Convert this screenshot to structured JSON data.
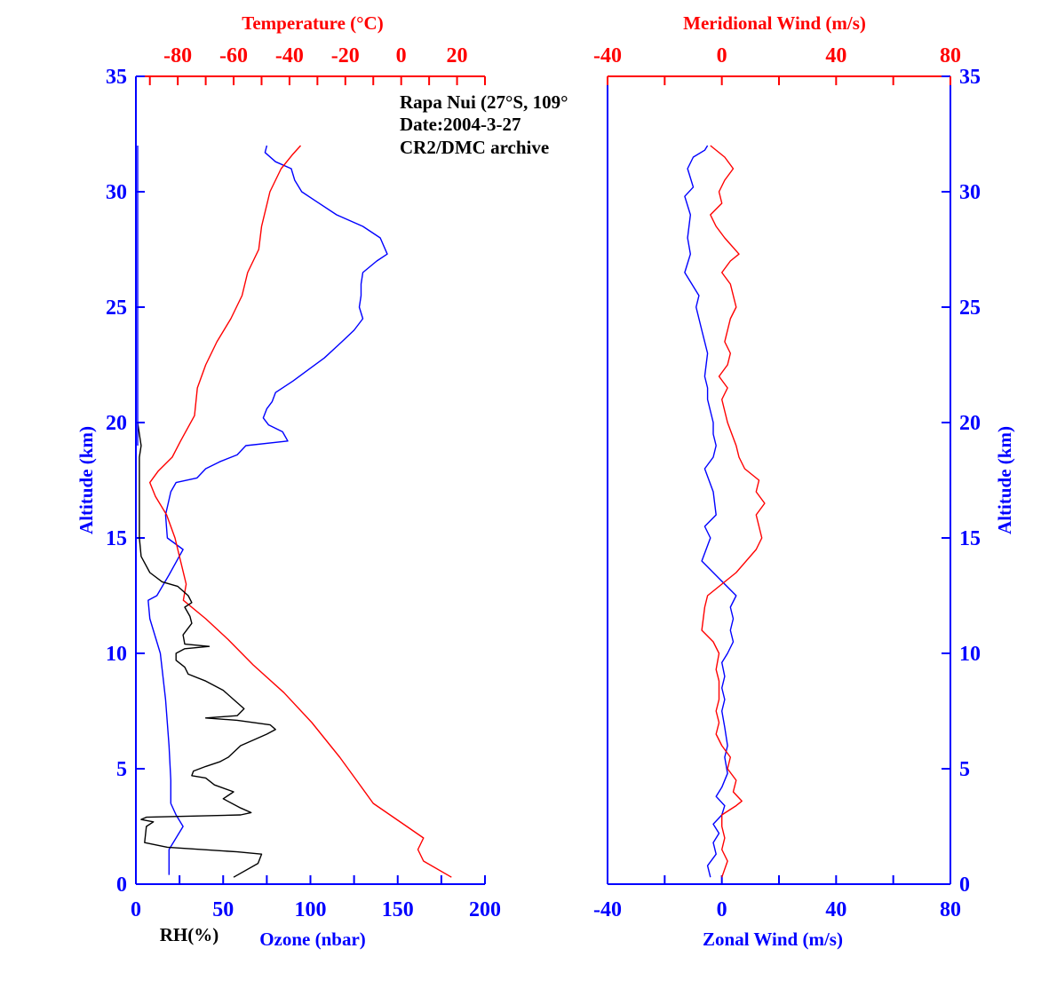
{
  "annotation": {
    "station": "Rapa Nui (27°S, 109°",
    "date": "Date:2004-3-27",
    "archive": "CR2/DMC archive"
  },
  "colors": {
    "blue": "#0000ff",
    "red": "#ff0000",
    "black": "#000000"
  },
  "chart_data": [
    {
      "type": "line",
      "panel": "left",
      "y_axis": {
        "label": "Altitude (km)",
        "range": [
          0,
          35
        ],
        "ticks": [
          0,
          5,
          10,
          15,
          20,
          25,
          30,
          35
        ]
      },
      "x_bottom": {
        "label": "Ozone (nbar)",
        "label2": "RH(%)",
        "range": [
          0,
          200
        ],
        "ticks": [
          0,
          50,
          100,
          150,
          200
        ]
      },
      "x_top": {
        "label": "Temperature (°C)",
        "range": [
          -95,
          30
        ],
        "ticks": [
          -80,
          -60,
          -40,
          -20,
          0,
          20
        ]
      },
      "series": [
        {
          "key": "ozone",
          "axis": "bottom",
          "color": "#0000ff",
          "points": [
            [
              19,
              0.4
            ],
            [
              19,
              1.5
            ],
            [
              27,
              2.5
            ],
            [
              23,
              3
            ],
            [
              20,
              3.5
            ],
            [
              20,
              4.5
            ],
            [
              19,
              6
            ],
            [
              17,
              8
            ],
            [
              14,
              10
            ],
            [
              8,
              11.5
            ],
            [
              7,
              12.3
            ],
            [
              12,
              12.5
            ],
            [
              19,
              13.4
            ],
            [
              27,
              14.5
            ],
            [
              18,
              15
            ],
            [
              17,
              16
            ],
            [
              20,
              17
            ],
            [
              23,
              17.4
            ],
            [
              35,
              17.6
            ],
            [
              40,
              18
            ],
            [
              48,
              18.3
            ],
            [
              58,
              18.6
            ],
            [
              63,
              19
            ],
            [
              87,
              19.2
            ],
            [
              84,
              19.6
            ],
            [
              76,
              19.9
            ],
            [
              73,
              20.2
            ],
            [
              75,
              20.6
            ],
            [
              78,
              20.9
            ],
            [
              80,
              21.3
            ],
            [
              90,
              21.8
            ],
            [
              99,
              22.3
            ],
            [
              108,
              22.8
            ],
            [
              118,
              23.5
            ],
            [
              125,
              24
            ],
            [
              130,
              24.5
            ],
            [
              128,
              25
            ],
            [
              129,
              25.5
            ],
            [
              129,
              26
            ],
            [
              130,
              26.5
            ],
            [
              138,
              27
            ],
            [
              144,
              27.3
            ],
            [
              140,
              28
            ],
            [
              130,
              28.5
            ],
            [
              115,
              29
            ],
            [
              103,
              29.6
            ],
            [
              95,
              30
            ],
            [
              91,
              30.5
            ],
            [
              89,
              31
            ],
            [
              80,
              31.3
            ],
            [
              74,
              31.7
            ],
            [
              75,
              32
            ]
          ]
        },
        {
          "key": "temperature",
          "axis": "top",
          "color": "#ff0000",
          "points": [
            [
              18,
              0.3
            ],
            [
              8,
              1
            ],
            [
              6,
              1.5
            ],
            [
              8,
              2
            ],
            [
              2,
              2.5
            ],
            [
              -10,
              3.5
            ],
            [
              -16,
              4.5
            ],
            [
              -22,
              5.5
            ],
            [
              -32,
              7
            ],
            [
              -42,
              8.3
            ],
            [
              -53,
              9.5
            ],
            [
              -62,
              10.6
            ],
            [
              -70,
              11.5
            ],
            [
              -78,
              12.3
            ],
            [
              -77,
              13
            ],
            [
              -79,
              14
            ],
            [
              -81,
              15
            ],
            [
              -84,
              16
            ],
            [
              -88,
              16.8
            ],
            [
              -90,
              17.4
            ],
            [
              -87,
              17.9
            ],
            [
              -82,
              18.5
            ],
            [
              -79,
              19.2
            ],
            [
              -74,
              20.3
            ],
            [
              -73,
              21.5
            ],
            [
              -70,
              22.5
            ],
            [
              -66,
              23.5
            ],
            [
              -61,
              24.5
            ],
            [
              -57,
              25.5
            ],
            [
              -55,
              26.5
            ],
            [
              -51,
              27.5
            ],
            [
              -50,
              28.5
            ],
            [
              -48,
              29.5
            ],
            [
              -47,
              30
            ],
            [
              -43,
              31
            ],
            [
              -39,
              31.6
            ],
            [
              -36,
              32
            ]
          ]
        },
        {
          "key": "rh",
          "axis": "bottom",
          "color": "#000000",
          "points": [
            [
              56,
              0.3
            ],
            [
              70,
              0.9
            ],
            [
              72,
              1.3
            ],
            [
              58,
              1.4
            ],
            [
              18,
              1.6
            ],
            [
              5,
              1.8
            ],
            [
              6,
              2.5
            ],
            [
              10,
              2.7
            ],
            [
              3,
              2.8
            ],
            [
              6,
              2.9
            ],
            [
              60,
              3
            ],
            [
              66,
              3.1
            ],
            [
              60,
              3.3
            ],
            [
              50,
              3.7
            ],
            [
              56,
              4
            ],
            [
              45,
              4.3
            ],
            [
              40,
              4.6
            ],
            [
              32,
              4.7
            ],
            [
              33,
              4.9
            ],
            [
              40,
              5.1
            ],
            [
              48,
              5.3
            ],
            [
              53,
              5.5
            ],
            [
              60,
              6
            ],
            [
              75,
              6.5
            ],
            [
              80,
              6.7
            ],
            [
              77,
              6.9
            ],
            [
              58,
              7.1
            ],
            [
              40,
              7.2
            ],
            [
              58,
              7.3
            ],
            [
              62,
              7.6
            ],
            [
              56,
              8
            ],
            [
              50,
              8.4
            ],
            [
              40,
              8.8
            ],
            [
              30,
              9.1
            ],
            [
              28,
              9.4
            ],
            [
              23,
              9.7
            ],
            [
              23,
              10
            ],
            [
              28,
              10.2
            ],
            [
              42,
              10.3
            ],
            [
              28,
              10.4
            ],
            [
              27,
              10.8
            ],
            [
              32,
              11.3
            ],
            [
              31,
              11.6
            ],
            [
              28,
              12
            ],
            [
              32,
              12.2
            ],
            [
              30,
              12.5
            ],
            [
              24,
              12.9
            ],
            [
              15,
              13.1
            ],
            [
              8,
              13.5
            ],
            [
              3,
              14.2
            ],
            [
              2,
              15
            ],
            [
              2,
              17
            ],
            [
              2,
              18.5
            ],
            [
              3,
              19
            ],
            [
              2,
              19.5
            ],
            [
              1,
              20
            ]
          ]
        },
        {
          "key": "rh-edge",
          "axis": "bottom",
          "color": "#0000ff",
          "points": [
            [
              1,
              19
            ],
            [
              1,
              32
            ]
          ]
        }
      ]
    },
    {
      "type": "line",
      "panel": "right",
      "y_axis": {
        "label": "Altitude (km)",
        "range": [
          0,
          35
        ],
        "ticks": [
          0,
          5,
          10,
          15,
          20,
          25,
          30,
          35
        ]
      },
      "x_bottom": {
        "label": "Zonal Wind (m/s)",
        "range": [
          -40,
          80
        ],
        "ticks": [
          -40,
          0,
          40,
          80
        ]
      },
      "x_top": {
        "label": "Meridional Wind (m/s)",
        "range": [
          -40,
          80
        ],
        "ticks": [
          -40,
          0,
          40,
          80
        ]
      },
      "series": [
        {
          "key": "zonal",
          "axis": "bottom",
          "color": "#0000ff",
          "points": [
            [
              -4,
              0.3
            ],
            [
              -5,
              0.8
            ],
            [
              -2,
              1.3
            ],
            [
              -3,
              1.8
            ],
            [
              -1,
              2.2
            ],
            [
              -3,
              2.6
            ],
            [
              0,
              3
            ],
            [
              1,
              3.4
            ],
            [
              -2,
              3.8
            ],
            [
              0,
              4.2
            ],
            [
              2,
              4.8
            ],
            [
              1,
              5.5
            ],
            [
              2,
              6
            ],
            [
              1,
              6.8
            ],
            [
              0,
              7.5
            ],
            [
              1,
              8
            ],
            [
              0,
              8.5
            ],
            [
              1,
              9
            ],
            [
              0,
              9.6
            ],
            [
              2,
              10
            ],
            [
              4,
              10.5
            ],
            [
              3,
              11
            ],
            [
              4,
              11.5
            ],
            [
              3,
              12
            ],
            [
              5,
              12.5
            ],
            [
              1,
              13
            ],
            [
              -3,
              13.5
            ],
            [
              -7,
              14
            ],
            [
              -4,
              15
            ],
            [
              -6,
              15.5
            ],
            [
              -2,
              16
            ],
            [
              -3,
              17
            ],
            [
              -6,
              18
            ],
            [
              -3,
              18.5
            ],
            [
              -2,
              19
            ],
            [
              -3,
              19.5
            ],
            [
              -3,
              20
            ],
            [
              -4,
              20.5
            ],
            [
              -5,
              21
            ],
            [
              -5,
              21.5
            ],
            [
              -6,
              22
            ],
            [
              -5,
              23
            ],
            [
              -7,
              24
            ],
            [
              -9,
              25
            ],
            [
              -8,
              25.5
            ],
            [
              -13,
              26.5
            ],
            [
              -11,
              27.3
            ],
            [
              -12,
              28
            ],
            [
              -11,
              29
            ],
            [
              -13,
              29.8
            ],
            [
              -10,
              30.2
            ],
            [
              -12,
              31
            ],
            [
              -10,
              31.5
            ],
            [
              -6,
              31.8
            ],
            [
              -5,
              32
            ]
          ]
        },
        {
          "key": "meridional",
          "axis": "top",
          "color": "#ff0000",
          "points": [
            [
              0,
              0.3
            ],
            [
              2,
              1
            ],
            [
              0,
              1.5
            ],
            [
              1,
              2
            ],
            [
              0,
              2.5
            ],
            [
              0,
              3
            ],
            [
              5,
              3.4
            ],
            [
              7,
              3.6
            ],
            [
              4,
              4
            ],
            [
              5,
              4.5
            ],
            [
              2,
              5
            ],
            [
              3,
              5.5
            ],
            [
              0,
              6
            ],
            [
              -2,
              6.5
            ],
            [
              -1,
              7
            ],
            [
              -2,
              7.5
            ],
            [
              -1,
              8
            ],
            [
              -1,
              8.8
            ],
            [
              -2,
              9.3
            ],
            [
              -1,
              10
            ],
            [
              -3,
              10.5
            ],
            [
              -7,
              11
            ],
            [
              -6,
              12
            ],
            [
              -5,
              12.5
            ],
            [
              5,
              13.5
            ],
            [
              12,
              14.5
            ],
            [
              14,
              15
            ],
            [
              12,
              16
            ],
            [
              15,
              16.5
            ],
            [
              12,
              17
            ],
            [
              13,
              17.5
            ],
            [
              8,
              18
            ],
            [
              6,
              18.5
            ],
            [
              5,
              19
            ],
            [
              2,
              20
            ],
            [
              0,
              21
            ],
            [
              2,
              21.5
            ],
            [
              -1,
              22
            ],
            [
              2,
              22.5
            ],
            [
              3,
              23
            ],
            [
              1,
              23.5
            ],
            [
              2,
              24
            ],
            [
              3,
              24.5
            ],
            [
              5,
              25
            ],
            [
              3,
              26
            ],
            [
              0,
              26.5
            ],
            [
              3,
              27
            ],
            [
              6,
              27.3
            ],
            [
              1,
              28
            ],
            [
              -2,
              28.5
            ],
            [
              -4,
              29
            ],
            [
              0,
              29.5
            ],
            [
              -1,
              30
            ],
            [
              1,
              30.5
            ],
            [
              4,
              31
            ],
            [
              1,
              31.5
            ],
            [
              -4,
              32
            ]
          ]
        }
      ]
    }
  ]
}
